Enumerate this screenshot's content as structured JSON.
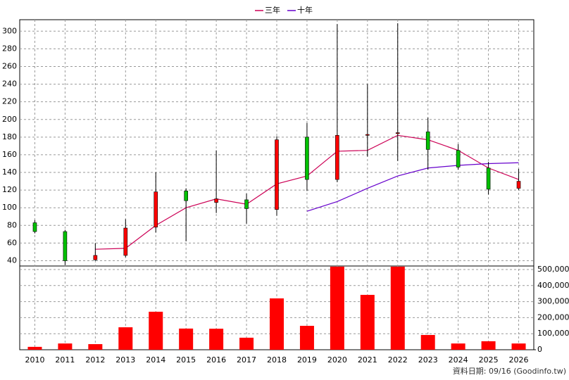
{
  "chart_data": {
    "type": "candlestick",
    "categories": [
      "2010",
      "2011",
      "2012",
      "2013",
      "2014",
      "2015",
      "2016",
      "2017",
      "2018",
      "2019",
      "2020",
      "2021",
      "2022",
      "2023",
      "2024",
      "2025",
      "2026"
    ],
    "open": [
      83,
      73,
      41,
      46,
      78,
      119,
      106,
      109,
      98,
      180,
      132,
      182,
      184,
      186,
      165,
      145,
      122
    ],
    "high": [
      86,
      75,
      60,
      87,
      140,
      122,
      165,
      116,
      181,
      196,
      308,
      240,
      309,
      202,
      172,
      152,
      144
    ],
    "low": [
      71,
      35,
      40,
      44,
      72,
      62,
      94,
      82,
      91,
      119,
      129,
      158,
      153,
      143,
      143,
      115,
      120
    ],
    "close": [
      73,
      40,
      46,
      77,
      118,
      108,
      110,
      99,
      177,
      132,
      182,
      183,
      185,
      166,
      146,
      121,
      130
    ],
    "up_color": "#ff0000",
    "down_color": "#00c000",
    "series": [
      {
        "name": "三年",
        "color": "#cc0055",
        "values": [
          null,
          null,
          53,
          54,
          80,
          100,
          110,
          104,
          127,
          136,
          164,
          165,
          182,
          177,
          165,
          145,
          132
        ]
      },
      {
        "name": "十年",
        "color": "#6600cc",
        "values": [
          null,
          null,
          null,
          null,
          null,
          null,
          null,
          null,
          null,
          96,
          107,
          122,
          136,
          145,
          148,
          150,
          151
        ]
      }
    ],
    "ylim": [
      34,
      313
    ],
    "yticks": [
      40,
      60,
      80,
      100,
      120,
      140,
      160,
      180,
      200,
      220,
      240,
      260,
      280,
      300
    ],
    "grid": true,
    "volume": {
      "type": "bar",
      "color": "#ff0000",
      "values": [
        18000,
        39000,
        35000,
        140000,
        237000,
        132000,
        131000,
        75000,
        320000,
        149000,
        518000,
        342000,
        518000,
        92000,
        39000,
        53000,
        39000
      ],
      "ylim": [
        0,
        522000
      ],
      "yticks": [
        0,
        {
          "value": 100000,
          "label": "100,000"
        },
        {
          "value": 200000,
          "label": "200,000"
        },
        {
          "value": 300000,
          "label": "300,000"
        },
        {
          "value": 400000,
          "label": "400,000"
        },
        {
          "value": 500000,
          "label": "500,000"
        }
      ]
    },
    "footnote": "資料日期: 09/16 (Goodinfo.tw)"
  }
}
